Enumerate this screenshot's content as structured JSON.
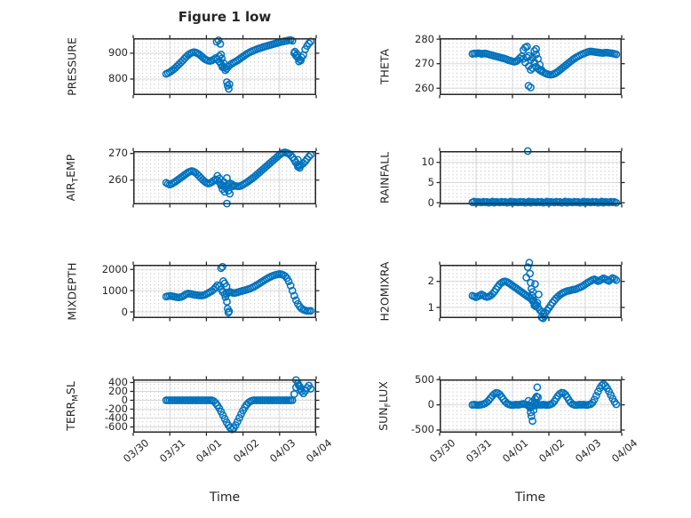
{
  "title": "Figure 1 low",
  "xlabel": "Time",
  "colors": {
    "marker": "#0072BD",
    "axis": "#262626",
    "grid": "#d9d9d9",
    "minor": "#c8c8c8",
    "background": "#ffffff"
  },
  "xticks": {
    "values": [
      0,
      1,
      2,
      3,
      4,
      5
    ],
    "labels": [
      "03/30",
      "03/31",
      "04/01",
      "04/02",
      "04/03",
      "04/04"
    ]
  },
  "chart_data": [
    {
      "id": "pressure",
      "type": "scatter",
      "col": "left",
      "row": 0,
      "show_xticklabels": false,
      "ylabel": {
        "pre": "PRESSURE",
        "sub": "",
        "post": ""
      },
      "yticks": [
        800,
        900
      ],
      "ylim": [
        738,
        958
      ],
      "xlim": [
        0,
        5
      ],
      "x0": 0.9,
      "dx": 0.05,
      "values": [
        820,
        823,
        827,
        832,
        837,
        843,
        850,
        857,
        864,
        871,
        879,
        886,
        893,
        898,
        902,
        904,
        903,
        900,
        896,
        890,
        884,
        878,
        874,
        871,
        870,
        872,
        876,
        881,
        876,
        868,
        858,
        850,
        845,
        840,
        848,
        855,
        860,
        864,
        868,
        872,
        877,
        882,
        887,
        892,
        897,
        901,
        905,
        908,
        911,
        914,
        917,
        919,
        921,
        924,
        926,
        928,
        930,
        932,
        934,
        936,
        938,
        940,
        942,
        944,
        945,
        947,
        948,
        950,
        951,
        948,
        900,
        890,
        882,
        876,
        884,
        893,
        915,
        928,
        938,
        945
      ],
      "extra": [
        [
          2.28,
          944
        ],
        [
          2.33,
          950
        ],
        [
          2.38,
          936
        ],
        [
          2.35,
          888
        ],
        [
          2.4,
          895
        ],
        [
          2.42,
          880
        ],
        [
          2.47,
          862
        ],
        [
          2.44,
          846
        ],
        [
          2.52,
          834
        ],
        [
          2.56,
          788
        ],
        [
          2.58,
          774
        ],
        [
          2.61,
          762
        ],
        [
          2.63,
          780
        ],
        [
          4.42,
          906
        ],
        [
          4.48,
          896
        ],
        [
          4.53,
          868
        ],
        [
          4.58,
          872
        ]
      ]
    },
    {
      "id": "theta",
      "type": "scatter",
      "col": "right",
      "row": 0,
      "show_xticklabels": false,
      "ylabel": {
        "pre": "THETA",
        "sub": "",
        "post": ""
      },
      "yticks": [
        260,
        270,
        280
      ],
      "ylim": [
        257.2,
        280.4
      ],
      "xlim": [
        0,
        5
      ],
      "x0": 0.9,
      "dx": 0.05,
      "values": [
        274,
        274.2,
        274.1,
        274.3,
        274.2,
        274,
        274.1,
        274.2,
        274,
        273.8,
        273.6,
        273.4,
        273.2,
        273,
        272.8,
        272.6,
        272.4,
        272.2,
        272,
        271.7,
        271.4,
        271.2,
        271,
        270.8,
        271,
        271.5,
        272.2,
        273,
        272,
        270.5,
        272.5,
        273.2,
        271.5,
        272.5,
        270.5,
        268.8,
        268,
        267.4,
        266.9,
        266.5,
        266.1,
        265.8,
        265.6,
        265.5,
        265.6,
        265.9,
        266.3,
        266.8,
        267.4,
        268,
        268.6,
        269.2,
        269.8,
        270.4,
        271,
        271.6,
        272.1,
        272.6,
        273,
        273.4,
        273.8,
        274.1,
        274.4,
        274.7,
        274.9,
        275,
        274.9,
        274.8,
        274.7,
        274.6,
        274.5,
        274.4,
        274.4,
        274.5,
        274.5,
        274.4,
        274.3,
        274.2,
        274,
        273.8
      ],
      "extra": [
        [
          2.3,
          275.6
        ],
        [
          2.35,
          276.6
        ],
        [
          2.4,
          277
        ],
        [
          2.45,
          269
        ],
        [
          2.5,
          267.5
        ],
        [
          2.44,
          261
        ],
        [
          2.5,
          260.3
        ],
        [
          2.55,
          268.2
        ],
        [
          2.6,
          270.6
        ],
        [
          2.6,
          275.2
        ],
        [
          2.65,
          276
        ],
        [
          2.65,
          273.8
        ],
        [
          2.7,
          272
        ],
        [
          2.75,
          269.6
        ],
        [
          2.8,
          267.4
        ]
      ]
    },
    {
      "id": "airtemp",
      "type": "scatter",
      "col": "left",
      "row": 1,
      "show_xticklabels": false,
      "ylabel": {
        "pre": "AIR",
        "sub": "T",
        "post": "EMP"
      },
      "yticks": [
        260,
        270
      ],
      "ylim": [
        250.9,
        270.9
      ],
      "xlim": [
        0,
        5
      ],
      "x0": 0.9,
      "dx": 0.05,
      "values": [
        259,
        258.6,
        258.3,
        258.6,
        259,
        259.4,
        259.9,
        260.4,
        260.9,
        261.4,
        261.9,
        262.4,
        262.9,
        263.2,
        263.4,
        263.2,
        262.8,
        262.2,
        261.5,
        260.8,
        260.1,
        259.5,
        259,
        258.7,
        258.9,
        259.3,
        259.8,
        260.3,
        260,
        259.3,
        258.5,
        257.9,
        257.4,
        257.9,
        258.4,
        258.8,
        258.4,
        258,
        257.8,
        257.7,
        257.7,
        257.9,
        258.3,
        258.7,
        259.1,
        259.6,
        260.1,
        260.6,
        261.1,
        261.7,
        262.3,
        262.9,
        263.5,
        264.1,
        264.7,
        265.3,
        265.9,
        266.5,
        267.1,
        267.7,
        268.3,
        268.9,
        269.5,
        270,
        270.3,
        270.4,
        270.2,
        269.9,
        269.4,
        268.6,
        267.6,
        266.6,
        265.8,
        265.4,
        265.8,
        266.3,
        267,
        267.9,
        268.8,
        269.5
      ],
      "extra": [
        [
          2.3,
          261.6
        ],
        [
          2.36,
          260.6
        ],
        [
          2.4,
          258
        ],
        [
          2.44,
          256.6
        ],
        [
          2.5,
          255.6
        ],
        [
          2.54,
          257
        ],
        [
          2.48,
          259.2
        ],
        [
          2.56,
          260.8
        ],
        [
          2.6,
          256
        ],
        [
          2.64,
          254.9
        ],
        [
          2.56,
          251.2
        ],
        [
          2.7,
          257.6
        ],
        [
          4.44,
          266.6
        ],
        [
          4.5,
          267.6
        ],
        [
          4.5,
          265
        ],
        [
          4.55,
          264.6
        ]
      ]
    },
    {
      "id": "rainfall",
      "type": "scatter",
      "col": "right",
      "row": 1,
      "show_xticklabels": false,
      "ylabel": {
        "pre": "RAINFALL",
        "sub": "",
        "post": ""
      },
      "yticks": [
        0,
        5,
        10
      ],
      "ylim": [
        -0.4,
        12.8
      ],
      "xlim": [
        0,
        5
      ],
      "x0": 0.9,
      "dx": 0.05,
      "values": [
        0.1,
        0.3,
        0,
        0.2,
        0.15,
        0.05,
        0.25,
        0.1,
        0.2,
        0,
        0.1,
        0.3,
        0,
        0.2,
        0.15,
        0.05,
        0.25,
        0.1,
        0.2,
        0,
        0.1,
        0.3,
        0,
        0.2,
        0.15,
        0.05,
        0.25,
        0.1,
        0.2,
        0,
        0.1,
        0.3,
        0,
        0.2,
        0.15,
        0.05,
        0.25,
        0.1,
        0.2,
        0,
        0.1,
        0.3,
        0,
        0.2,
        0.15,
        0.05,
        0.25,
        0.1,
        0.2,
        0,
        0.1,
        0.3,
        0,
        0.2,
        0.15,
        0.05,
        0.25,
        0.1,
        0.2,
        0,
        0.1,
        0.3,
        0,
        0.2,
        0.15,
        0.05,
        0.25,
        0.1,
        0.2,
        0,
        0.1,
        0.3,
        0,
        0.2,
        0.15,
        0.05,
        0.25,
        0.1,
        0.2,
        0
      ],
      "extra": [
        [
          2.42,
          12.8
        ]
      ]
    },
    {
      "id": "mixdepth",
      "type": "scatter",
      "col": "left",
      "row": 2,
      "show_xticklabels": false,
      "ylabel": {
        "pre": "MIXDEPTH",
        "sub": "",
        "post": ""
      },
      "yticks": [
        0,
        1000,
        2000
      ],
      "ylim": [
        -292,
        2221
      ],
      "xlim": [
        0,
        5
      ],
      "x0": 0.9,
      "dx": 0.05,
      "values": [
        720,
        740,
        755,
        745,
        725,
        705,
        690,
        685,
        700,
        730,
        790,
        840,
        865,
        855,
        835,
        815,
        798,
        788,
        778,
        772,
        780,
        800,
        840,
        890,
        940,
        990,
        1060,
        1160,
        1260,
        1210,
        1060,
        930,
        830,
        860,
        900,
        940,
        910,
        885,
        900,
        925,
        950,
        975,
        1000,
        1020,
        1045,
        1075,
        1105,
        1145,
        1190,
        1240,
        1290,
        1345,
        1400,
        1455,
        1510,
        1560,
        1610,
        1655,
        1695,
        1725,
        1750,
        1770,
        1785,
        1770,
        1740,
        1690,
        1590,
        1440,
        1240,
        1000,
        760,
        550,
        380,
        250,
        160,
        105,
        70,
        50,
        45,
        50
      ],
      "extra": [
        [
          2.4,
          2060
        ],
        [
          2.44,
          2130
        ],
        [
          2.46,
          1450
        ],
        [
          2.5,
          1340
        ],
        [
          2.55,
          1200
        ],
        [
          2.52,
          700
        ],
        [
          2.56,
          480
        ],
        [
          2.58,
          150
        ],
        [
          2.6,
          -40
        ],
        [
          2.62,
          30
        ]
      ]
    },
    {
      "id": "h2omixra",
      "type": "scatter",
      "col": "right",
      "row": 2,
      "show_xticklabels": false,
      "ylabel": {
        "pre": "H2OMIXRA",
        "sub": "",
        "post": ""
      },
      "yticks": [
        1,
        2
      ],
      "ylim": [
        0.59,
        2.64
      ],
      "xlim": [
        0,
        5
      ],
      "x0": 0.9,
      "dx": 0.05,
      "values": [
        1.45,
        1.42,
        1.39,
        1.42,
        1.46,
        1.5,
        1.46,
        1.42,
        1.4,
        1.42,
        1.46,
        1.52,
        1.6,
        1.7,
        1.8,
        1.89,
        1.95,
        1.99,
        2,
        1.98,
        1.94,
        1.89,
        1.84,
        1.79,
        1.74,
        1.69,
        1.64,
        1.59,
        1.54,
        1.49,
        1.44,
        1.39,
        1.34,
        1.26,
        1.17,
        1.1,
        1,
        0.9,
        0.83,
        0.78,
        0.8,
        0.88,
        0.98,
        1.08,
        1.18,
        1.27,
        1.35,
        1.42,
        1.48,
        1.53,
        1.57,
        1.6,
        1.63,
        1.64,
        1.66,
        1.68,
        1.69,
        1.71,
        1.74,
        1.77,
        1.8,
        1.84,
        1.89,
        1.94,
        1.98,
        2.02,
        2.06,
        2.08,
        2.05,
        2.01,
        2.04,
        2.08,
        2.12,
        2.09,
        2.05,
        2.02,
        2.08,
        2.13,
        2.1,
        2.05
      ],
      "extra": [
        [
          2.38,
          2.15
        ],
        [
          2.42,
          2.55
        ],
        [
          2.46,
          2.72
        ],
        [
          2.48,
          2.3
        ],
        [
          2.5,
          1.95
        ],
        [
          2.52,
          1.72
        ],
        [
          2.54,
          1.45
        ],
        [
          2.56,
          1.6
        ],
        [
          2.58,
          1.28
        ],
        [
          2.6,
          1.08
        ],
        [
          2.62,
          1.9
        ],
        [
          2.64,
          1.04
        ],
        [
          2.68,
          1.18
        ],
        [
          2.72,
          1.5
        ],
        [
          2.8,
          0.62
        ],
        [
          2.84,
          0.58
        ],
        [
          2.88,
          0.66
        ]
      ]
    },
    {
      "id": "terrmsl",
      "type": "scatter",
      "col": "left",
      "row": 3,
      "show_xticklabels": true,
      "ylabel": {
        "pre": "TERR",
        "sub": "M",
        "post": "SL"
      },
      "yticks": [
        -600,
        -400,
        -200,
        0,
        200,
        400
      ],
      "ylim": [
        -730,
        470
      ],
      "xlim": [
        0,
        5
      ],
      "x0": 0.9,
      "dx": 0.05,
      "values": [
        0,
        0,
        0,
        0,
        0,
        0,
        0,
        0,
        0,
        0,
        0,
        0,
        0,
        0,
        0,
        0,
        0,
        0,
        0,
        0,
        0,
        0,
        0,
        0,
        0,
        0,
        -20,
        -60,
        -115,
        -180,
        -255,
        -335,
        -415,
        -495,
        -565,
        -620,
        -655,
        -625,
        -560,
        -480,
        -395,
        -310,
        -230,
        -160,
        -100,
        -55,
        -25,
        -8,
        0,
        0,
        0,
        0,
        0,
        0,
        0,
        0,
        0,
        0,
        0,
        0,
        0,
        0,
        0,
        0,
        0,
        0,
        0,
        0,
        0,
        0,
        140,
        290,
        380,
        310,
        200,
        155,
        210,
        280,
        330,
        260
      ],
      "extra": [
        [
          4.45,
          455
        ],
        [
          4.52,
          340
        ],
        [
          4.58,
          250
        ]
      ]
    },
    {
      "id": "sunflux",
      "type": "scatter",
      "col": "right",
      "row": 3,
      "show_xticklabels": true,
      "ylabel": {
        "pre": "SUN",
        "sub": "F",
        "post": "LUX"
      },
      "yticks": [
        -500,
        0,
        500
      ],
      "ylim": [
        -553,
        505
      ],
      "xlim": [
        0,
        5
      ],
      "x0": 0.9,
      "dx": 0.05,
      "values": [
        0,
        5,
        0,
        -5,
        0,
        5,
        15,
        30,
        55,
        90,
        135,
        180,
        215,
        238,
        232,
        205,
        160,
        110,
        65,
        30,
        10,
        0,
        -5,
        0,
        5,
        0,
        5,
        15,
        20,
        10,
        0,
        -10,
        -20,
        -25,
        -15,
        -5,
        5,
        0,
        0,
        5,
        0,
        -5,
        0,
        10,
        30,
        70,
        125,
        180,
        220,
        242,
        235,
        205,
        155,
        95,
        45,
        15,
        0,
        -5,
        0,
        5,
        0,
        5,
        0,
        -5,
        5,
        15,
        45,
        105,
        180,
        260,
        330,
        385,
        410,
        380,
        330,
        265,
        195,
        125,
        60,
        10
      ],
      "extra": [
        [
          2.44,
          80
        ],
        [
          2.46,
          -20
        ],
        [
          2.48,
          -60
        ],
        [
          2.5,
          -150
        ],
        [
          2.52,
          -225
        ],
        [
          2.54,
          55
        ],
        [
          2.55,
          -320
        ],
        [
          2.58,
          -105
        ],
        [
          2.6,
          28
        ],
        [
          2.62,
          120
        ],
        [
          2.66,
          165
        ],
        [
          2.68,
          348
        ],
        [
          2.7,
          150
        ]
      ]
    }
  ]
}
